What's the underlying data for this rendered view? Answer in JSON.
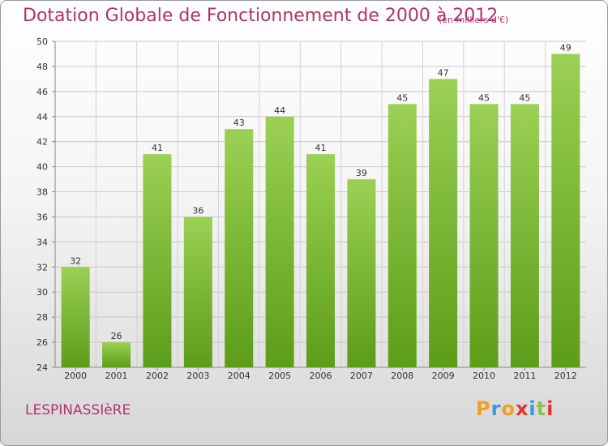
{
  "header": {
    "title": "Dotation Globale de Fonctionnement de 2000 à 2012",
    "subtitle": "(en milliers d'€)"
  },
  "footer": {
    "commune": "LESPINASSIèRE",
    "logo_text": "Proxiti"
  },
  "colors": {
    "title": "#b0336b",
    "bar_light": "#9bd054",
    "bar_dark": "#5c9d18",
    "logo_letters": [
      "#f0a01e",
      "#3a9ad9",
      "#f0a01e",
      "#e2342b",
      "#3a9ad9",
      "#8bc34a",
      "#e2342b"
    ]
  },
  "chart_data": {
    "type": "bar",
    "title": "Dotation Globale de Fonctionnement de 2000 à 2012",
    "subtitle": "(en milliers d'€)",
    "xlabel": "",
    "ylabel": "",
    "categories": [
      "2000",
      "2001",
      "2002",
      "2003",
      "2004",
      "2005",
      "2006",
      "2007",
      "2008",
      "2009",
      "2010",
      "2011",
      "2012"
    ],
    "values": [
      32,
      26,
      41,
      36,
      43,
      44,
      41,
      39,
      45,
      47,
      45,
      45,
      49
    ],
    "ylim": [
      24,
      50
    ],
    "yticks": [
      24,
      26,
      28,
      30,
      32,
      34,
      36,
      38,
      40,
      42,
      44,
      46,
      48,
      50
    ],
    "grid": true,
    "data_labels": true
  }
}
